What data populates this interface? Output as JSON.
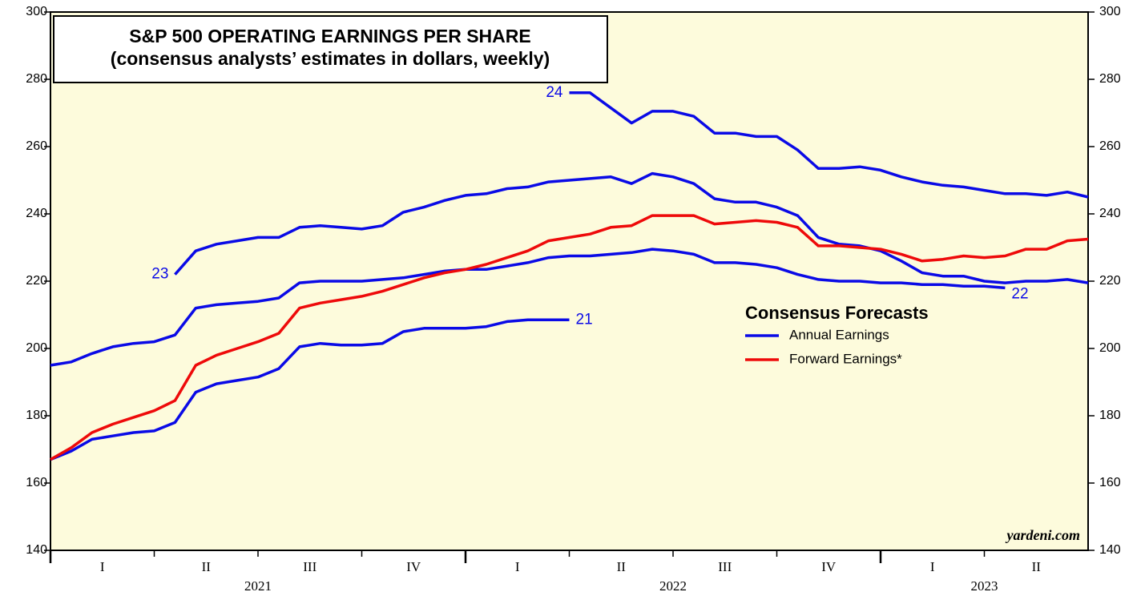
{
  "chart_data": {
    "type": "line",
    "title": "S&P 500 OPERATING EARNINGS PER SHARE",
    "subtitle": "(consensus analysts’ estimates in dollars, weekly)",
    "source": "yardeni.com",
    "x": [
      2021.0,
      2021.05,
      2021.1,
      2021.15,
      2021.2,
      2021.25,
      2021.3,
      2021.35,
      2021.4,
      2021.45,
      2021.5,
      2021.55,
      2021.6,
      2021.65,
      2021.7,
      2021.75,
      2021.8,
      2021.85,
      2021.9,
      2021.95,
      2022.0,
      2022.05,
      2022.1,
      2022.15,
      2022.2,
      2022.25,
      2022.3,
      2022.35,
      2022.4,
      2022.45,
      2022.5,
      2022.55,
      2022.6,
      2022.65,
      2022.7,
      2022.75,
      2022.8,
      2022.85,
      2022.9,
      2022.95,
      2023.0,
      2023.05,
      2023.1,
      2023.15,
      2023.2,
      2023.25,
      2023.3,
      2023.35,
      2023.4,
      2023.45,
      2023.5
    ],
    "series": [
      {
        "name": "21",
        "color": "#0a0ae6",
        "values": [
          167,
          169.5,
          173,
          174,
          175,
          175.5,
          178,
          187,
          189.5,
          190.5,
          191.5,
          194,
          200.5,
          201.5,
          201,
          201,
          201.5,
          205,
          206,
          206,
          206,
          206.5,
          208,
          208.5,
          208.5,
          208.5,
          null,
          null,
          null,
          null,
          null,
          null,
          null,
          null,
          null,
          null,
          null,
          null,
          null,
          null,
          null,
          null,
          null,
          null,
          null,
          null,
          null,
          null,
          null,
          null,
          null
        ]
      },
      {
        "name": "22",
        "color": "#0a0ae6",
        "values": [
          195,
          196,
          198.5,
          200.5,
          201.5,
          202,
          204,
          212,
          213,
          213.5,
          214,
          215,
          219.5,
          220,
          220,
          220,
          220.5,
          221,
          222,
          223,
          223.5,
          223.5,
          224.5,
          225.5,
          227,
          227.5,
          227.5,
          228,
          228.5,
          229.5,
          229,
          228,
          225.5,
          225.5,
          225,
          224,
          222,
          220.5,
          220,
          220,
          219.5,
          219.5,
          219,
          219,
          218.5,
          218.5,
          218,
          null,
          null,
          null,
          null
        ]
      },
      {
        "name": "23",
        "color": "#0a0ae6",
        "values": [
          null,
          null,
          null,
          null,
          null,
          null,
          222,
          229,
          231,
          232,
          233,
          233,
          236,
          236.5,
          236,
          235.5,
          236.5,
          240.5,
          242,
          244,
          245.5,
          246,
          247.5,
          248,
          249.5,
          250,
          250.5,
          251,
          249,
          252,
          251,
          249,
          244.5,
          243.5,
          243.5,
          242,
          239.5,
          233,
          231,
          230.5,
          229,
          226,
          222.5,
          221.5,
          221.5,
          220,
          219.5,
          220,
          220,
          220.5,
          219.5
        ]
      },
      {
        "name": "24",
        "color": "#0a0ae6",
        "values": [
          null,
          null,
          null,
          null,
          null,
          null,
          null,
          null,
          null,
          null,
          null,
          null,
          null,
          null,
          null,
          null,
          null,
          null,
          null,
          null,
          null,
          null,
          null,
          null,
          null,
          276,
          276,
          271.5,
          267,
          270.5,
          270.5,
          269,
          264,
          264,
          263,
          263,
          259,
          253.5,
          253.5,
          254,
          253,
          251,
          249.5,
          248.5,
          248,
          247,
          246,
          246,
          245.5,
          246.5,
          245
        ]
      },
      {
        "name": "Forward Earnings*",
        "color": "#ee0a0a",
        "values": [
          167,
          170.5,
          175,
          177.5,
          179.5,
          181.5,
          184.5,
          195,
          198,
          200,
          202,
          204.5,
          212,
          213.5,
          214.5,
          215.5,
          217,
          219,
          221,
          222.5,
          223.5,
          225,
          227,
          229,
          232,
          233,
          234,
          236,
          236.5,
          239.5,
          239.5,
          239.5,
          237,
          237.5,
          238,
          237.5,
          236,
          230.5,
          230.5,
          230,
          229.5,
          228,
          226,
          226.5,
          227.5,
          227,
          227.5,
          229.5,
          229.5,
          232,
          232.5
        ]
      }
    ],
    "legend": {
      "title": "Consensus Forecasts",
      "annual_label": "Annual Earnings",
      "annual_color": "#0a0ae6"
    },
    "xlim": [
      2021,
      2023.5
    ],
    "quarter_labels": [
      "I",
      "II",
      "III",
      "IV",
      "I",
      "II",
      "III",
      "IV",
      "I",
      "II"
    ],
    "year_labels": [
      "2021",
      "2022",
      "2023"
    ],
    "ylim": [
      140,
      300
    ],
    "yticks": [
      140,
      160,
      180,
      200,
      220,
      240,
      260,
      280,
      300
    ]
  }
}
